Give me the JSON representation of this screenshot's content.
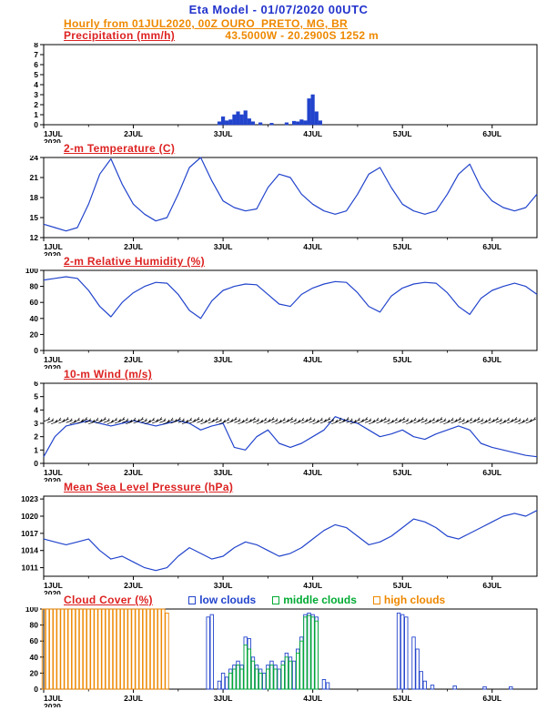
{
  "header": {
    "line1": "Eta Model - 01/07/2020 00UTC",
    "line2": "Hourly from 01JUL2020, 00Z  OURO_PRETO, MG, BR",
    "coords": "43.5000W - 20.2900S   1252  m"
  },
  "x_axis": {
    "tick_labels": [
      "1JUL",
      "2JUL",
      "3JUL",
      "4JUL",
      "5JUL",
      "6JUL"
    ],
    "tick_hours": [
      0,
      24,
      48,
      72,
      96,
      120
    ],
    "minor_step_hours": 12,
    "total_hours": 132,
    "year_label": "2020"
  },
  "colors": {
    "title_blue": "#2233cc",
    "header_orange": "#ee8800",
    "panel_title_red": "#dd2222",
    "series_blue": "#2244cc",
    "barb_black": "#000000",
    "cloud_low": "#2244cc",
    "cloud_middle": "#00aa33",
    "cloud_high": "#ee8800",
    "axis": "#000000"
  },
  "chart_data": [
    {
      "id": "precip",
      "type": "bar",
      "title": "Precipitation (mm/h)",
      "ylim": [
        0,
        8
      ],
      "yticks": [
        0,
        1,
        2,
        3,
        4,
        5,
        6,
        7,
        8
      ],
      "bars": [
        [
          47,
          0.3
        ],
        [
          48,
          0.8
        ],
        [
          49,
          0.4
        ],
        [
          50,
          0.5
        ],
        [
          51,
          1.0
        ],
        [
          52,
          1.3
        ],
        [
          53,
          1.0
        ],
        [
          54,
          1.4
        ],
        [
          55,
          0.6
        ],
        [
          56,
          0.3
        ],
        [
          58,
          0.2
        ],
        [
          61,
          0.15
        ],
        [
          65,
          0.2
        ],
        [
          67,
          0.35
        ],
        [
          68,
          0.3
        ],
        [
          69,
          0.5
        ],
        [
          70,
          0.4
        ],
        [
          71,
          2.6
        ],
        [
          72,
          3.0
        ],
        [
          73,
          1.3
        ],
        [
          74,
          0.4
        ]
      ]
    },
    {
      "id": "temp",
      "type": "line",
      "title": "2-m Temperature (C)",
      "ylim": [
        12,
        24
      ],
      "yticks": [
        12,
        15,
        18,
        21,
        24
      ],
      "x_step_hours": 3,
      "values": [
        14,
        13.5,
        13,
        13.5,
        17,
        21.5,
        23.8,
        20,
        17,
        15.5,
        14.5,
        15,
        18.5,
        22.5,
        24,
        20.5,
        17.5,
        16.5,
        16,
        16.3,
        19.5,
        21.5,
        21,
        18.5,
        17,
        16,
        15.5,
        16,
        18.5,
        21.5,
        22.5,
        19.5,
        17,
        16,
        15.5,
        16,
        18.5,
        21.5,
        23,
        19.5,
        17.5,
        16.5,
        16,
        16.5,
        18.5
      ]
    },
    {
      "id": "rh",
      "type": "line",
      "title": "2-m Relative Humidity (%)",
      "ylim": [
        0,
        100
      ],
      "yticks": [
        0,
        20,
        40,
        60,
        80,
        100
      ],
      "x_step_hours": 3,
      "values": [
        88,
        90,
        92,
        90,
        75,
        55,
        42,
        60,
        72,
        80,
        85,
        84,
        70,
        50,
        40,
        62,
        75,
        80,
        83,
        82,
        70,
        58,
        55,
        70,
        78,
        83,
        86,
        85,
        72,
        55,
        48,
        68,
        78,
        83,
        85,
        84,
        72,
        55,
        45,
        65,
        75,
        80,
        84,
        80,
        70
      ]
    },
    {
      "id": "wind",
      "type": "line",
      "title": "10-m Wind (m/s)",
      "ylim": [
        0,
        6
      ],
      "yticks": [
        0,
        1,
        2,
        3,
        4,
        5,
        6
      ],
      "x_step_hours": 3,
      "values": [
        0.5,
        2,
        2.8,
        3,
        3.2,
        3,
        2.8,
        3,
        3.2,
        3,
        2.8,
        3,
        3.2,
        3,
        2.5,
        2.8,
        3,
        1.2,
        1,
        2,
        2.5,
        1.5,
        1.2,
        1.5,
        2,
        2.5,
        3.5,
        3.2,
        3,
        2.5,
        2,
        2.2,
        2.5,
        2,
        1.8,
        2.2,
        2.5,
        2.8,
        2.5,
        1.5,
        1.2,
        1,
        0.8,
        0.6,
        0.5
      ],
      "barbs": {
        "y_value": 3.05,
        "step_hours": 1
      }
    },
    {
      "id": "mslp",
      "type": "line",
      "title": "Mean Sea Level Pressure (hPa)",
      "ylim": [
        1009.5,
        1023.5
      ],
      "yticks": [
        1011,
        1014,
        1017,
        1020,
        1023
      ],
      "x_step_hours": 3,
      "values": [
        1016,
        1015.5,
        1015,
        1015.5,
        1016,
        1014,
        1012.5,
        1013,
        1012,
        1011,
        1010.5,
        1011,
        1013,
        1014.5,
        1013.5,
        1012.5,
        1013,
        1014.5,
        1015.5,
        1015,
        1014,
        1013,
        1013.5,
        1014.5,
        1016,
        1017.5,
        1018.5,
        1018,
        1016.5,
        1015,
        1015.5,
        1016.5,
        1018,
        1019.5,
        1019,
        1018,
        1016.5,
        1016,
        1017,
        1018,
        1019,
        1020,
        1020.5,
        1020,
        1021
      ]
    },
    {
      "id": "cloud",
      "type": "cloud",
      "title": "Cloud Cover (%)",
      "ylim": [
        0,
        100
      ],
      "yticks": [
        0,
        20,
        40,
        60,
        80,
        100
      ],
      "legend": [
        {
          "key": "low",
          "label": "low clouds"
        },
        {
          "key": "middle",
          "label": "middle clouds"
        },
        {
          "key": "high",
          "label": "high clouds"
        }
      ],
      "series": {
        "high": [
          [
            0,
            100
          ],
          [
            1,
            100
          ],
          [
            2,
            100
          ],
          [
            3,
            100
          ],
          [
            4,
            100
          ],
          [
            5,
            100
          ],
          [
            6,
            100
          ],
          [
            7,
            100
          ],
          [
            8,
            100
          ],
          [
            9,
            100
          ],
          [
            10,
            100
          ],
          [
            11,
            100
          ],
          [
            12,
            100
          ],
          [
            13,
            100
          ],
          [
            14,
            100
          ],
          [
            15,
            100
          ],
          [
            16,
            100
          ],
          [
            17,
            100
          ],
          [
            18,
            100
          ],
          [
            19,
            100
          ],
          [
            20,
            100
          ],
          [
            21,
            100
          ],
          [
            22,
            100
          ],
          [
            23,
            100
          ],
          [
            24,
            100
          ],
          [
            25,
            100
          ],
          [
            26,
            100
          ],
          [
            27,
            100
          ],
          [
            28,
            100
          ],
          [
            29,
            100
          ],
          [
            30,
            100
          ],
          [
            31,
            100
          ],
          [
            32,
            100
          ],
          [
            33,
            95
          ]
        ],
        "low": [
          [
            44,
            90
          ],
          [
            45,
            93
          ],
          [
            47,
            10
          ],
          [
            48,
            20
          ],
          [
            49,
            15
          ],
          [
            50,
            25
          ],
          [
            51,
            30
          ],
          [
            52,
            35
          ],
          [
            53,
            30
          ],
          [
            54,
            65
          ],
          [
            55,
            63
          ],
          [
            56,
            40
          ],
          [
            57,
            30
          ],
          [
            58,
            25
          ],
          [
            59,
            20
          ],
          [
            60,
            30
          ],
          [
            61,
            35
          ],
          [
            62,
            30
          ],
          [
            63,
            25
          ],
          [
            64,
            35
          ],
          [
            65,
            45
          ],
          [
            66,
            40
          ],
          [
            67,
            35
          ],
          [
            68,
            50
          ],
          [
            69,
            65
          ],
          [
            70,
            93
          ],
          [
            71,
            95
          ],
          [
            72,
            93
          ],
          [
            73,
            90
          ],
          [
            75,
            12
          ],
          [
            76,
            8
          ],
          [
            95,
            95
          ],
          [
            96,
            93
          ],
          [
            97,
            90
          ],
          [
            99,
            65
          ],
          [
            100,
            50
          ],
          [
            101,
            22
          ],
          [
            102,
            10
          ],
          [
            104,
            5
          ],
          [
            110,
            4
          ],
          [
            118,
            3
          ],
          [
            125,
            3
          ]
        ],
        "middle": [
          [
            50,
            20
          ],
          [
            51,
            25
          ],
          [
            52,
            30
          ],
          [
            53,
            25
          ],
          [
            54,
            55
          ],
          [
            55,
            50
          ],
          [
            56,
            35
          ],
          [
            57,
            25
          ],
          [
            58,
            20
          ],
          [
            60,
            25
          ],
          [
            61,
            30
          ],
          [
            62,
            25
          ],
          [
            64,
            30
          ],
          [
            65,
            40
          ],
          [
            66,
            35
          ],
          [
            68,
            45
          ],
          [
            69,
            60
          ],
          [
            70,
            90
          ],
          [
            71,
            92
          ],
          [
            72,
            90
          ],
          [
            73,
            85
          ]
        ]
      }
    }
  ]
}
